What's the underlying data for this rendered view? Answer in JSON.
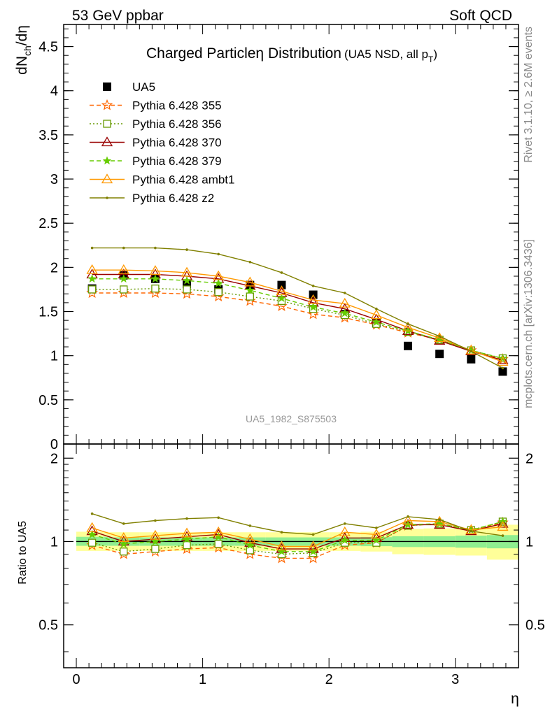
{
  "header": {
    "left": "53 GeV ppbar",
    "right": "Soft QCD"
  },
  "side_text": {
    "rivet": "Rivet 3.1.10, ≥ 2.6M events",
    "mcplots": "mcplots.cern.ch [arXiv:1306.3436]"
  },
  "chart_data": [
    {
      "type": "line",
      "panel": "main",
      "title": "Charged Particleη Distribution",
      "subtitle": "(UA5 NSD, all p",
      "subtitle_sub": "T",
      "subtitle_close": ")",
      "ylabel": "dN",
      "ylabel_sub": "ch",
      "ylabel_tail": "/dη",
      "watermark": "UA5_1982_S875503",
      "xlim": [
        -0.1,
        3.5
      ],
      "ylim": [
        0,
        4.75
      ],
      "yticks": [
        0,
        0.5,
        1,
        1.5,
        2,
        2.5,
        3,
        3.5,
        4,
        4.5
      ],
      "ytick_labels": [
        "0",
        "0.5",
        "1",
        "1.5",
        "2",
        "2.5",
        "3",
        "3.5",
        "4",
        "4.5"
      ],
      "x": [
        0.125,
        0.375,
        0.625,
        0.875,
        1.125,
        1.375,
        1.625,
        1.875,
        2.125,
        2.375,
        2.625,
        2.875,
        3.125,
        3.375
      ],
      "series": [
        {
          "name": "UA5",
          "color": "#000000",
          "marker": "square",
          "line": "none",
          "values": [
            1.76,
            1.91,
            1.87,
            1.81,
            1.75,
            1.8,
            1.8,
            1.69,
            1.47,
            1.37,
            1.11,
            1.02,
            0.96,
            0.82
          ]
        },
        {
          "name": "Pythia 6.428 355",
          "color": "#ff6600",
          "marker": "star-open",
          "line": "dashed",
          "values": [
            1.71,
            1.71,
            1.71,
            1.7,
            1.67,
            1.62,
            1.56,
            1.47,
            1.43,
            1.35,
            1.26,
            1.18,
            1.06,
            0.96
          ]
        },
        {
          "name": "Pythia 6.428 356",
          "color": "#669900",
          "marker": "square-open",
          "line": "dotted",
          "values": [
            1.75,
            1.75,
            1.76,
            1.75,
            1.72,
            1.67,
            1.62,
            1.53,
            1.46,
            1.36,
            1.27,
            1.18,
            1.06,
            0.97
          ]
        },
        {
          "name": "Pythia 6.428 370",
          "color": "#990000",
          "marker": "triangle-open",
          "line": "solid",
          "values": [
            1.92,
            1.92,
            1.92,
            1.9,
            1.87,
            1.79,
            1.71,
            1.6,
            1.53,
            1.41,
            1.28,
            1.17,
            1.05,
            0.95
          ]
        },
        {
          "name": "Pythia 6.428 379",
          "color": "#66cc00",
          "marker": "star",
          "line": "dashed",
          "values": [
            1.87,
            1.87,
            1.87,
            1.85,
            1.82,
            1.74,
            1.65,
            1.55,
            1.48,
            1.38,
            1.28,
            1.18,
            1.06,
            0.97
          ]
        },
        {
          "name": "Pythia 6.428 ambt1",
          "color": "#ff9900",
          "marker": "triangle-open",
          "line": "solid",
          "values": [
            1.97,
            1.97,
            1.96,
            1.94,
            1.9,
            1.83,
            1.73,
            1.63,
            1.59,
            1.46,
            1.32,
            1.2,
            1.06,
            0.93
          ]
        },
        {
          "name": "Pythia 6.428 z2",
          "color": "#808000",
          "marker": "dot",
          "line": "solid",
          "values": [
            2.22,
            2.22,
            2.22,
            2.2,
            2.15,
            2.06,
            1.94,
            1.79,
            1.71,
            1.53,
            1.36,
            1.22,
            1.05,
            0.86
          ]
        }
      ]
    },
    {
      "type": "line",
      "panel": "ratio",
      "ylabel": "Ratio to UA5",
      "xlabel": "η",
      "xlim": [
        -0.1,
        3.5
      ],
      "xticks": [
        0,
        1,
        2,
        3
      ],
      "xtick_labels": [
        "0",
        "1",
        "2",
        "3"
      ],
      "ylim": [
        0.35,
        2.25
      ],
      "yticks": [
        0.5,
        1,
        2
      ],
      "ytick_labels": [
        "0.5",
        "1",
        "2"
      ],
      "band_edges": [
        0,
        0.25,
        0.5,
        0.75,
        1.0,
        1.25,
        1.5,
        1.75,
        2.0,
        2.25,
        2.5,
        2.75,
        3.0,
        3.25,
        3.5
      ],
      "band_inner": [
        [
          0.965,
          1.04
        ],
        [
          0.965,
          1.035
        ],
        [
          0.965,
          1.035
        ],
        [
          0.965,
          1.035
        ],
        [
          0.965,
          1.035
        ],
        [
          0.965,
          1.035
        ],
        [
          0.965,
          1.035
        ],
        [
          0.965,
          1.035
        ],
        [
          0.965,
          1.035
        ],
        [
          0.962,
          1.037
        ],
        [
          0.955,
          1.045
        ],
        [
          0.955,
          1.045
        ],
        [
          0.95,
          1.05
        ],
        [
          0.945,
          1.055
        ]
      ],
      "band_outer": [
        [
          0.925,
          1.085
        ],
        [
          0.925,
          1.08
        ],
        [
          0.925,
          1.08
        ],
        [
          0.925,
          1.08
        ],
        [
          0.925,
          1.08
        ],
        [
          0.925,
          1.08
        ],
        [
          0.925,
          1.08
        ],
        [
          0.925,
          1.08
        ],
        [
          0.925,
          1.08
        ],
        [
          0.92,
          1.085
        ],
        [
          0.9,
          1.11
        ],
        [
          0.895,
          1.115
        ],
        [
          0.89,
          1.12
        ],
        [
          0.86,
          1.15
        ]
      ],
      "band_colors": {
        "inner": "#90ee90",
        "outer": "#ffff99"
      },
      "x": [
        0.125,
        0.375,
        0.625,
        0.875,
        1.125,
        1.375,
        1.625,
        1.875,
        2.125,
        2.375,
        2.625,
        2.875,
        3.125,
        3.375
      ],
      "series": [
        {
          "name": "Pythia 6.428 355",
          "color": "#ff6600",
          "marker": "star-open",
          "line": "dashed",
          "values": [
            0.97,
            0.9,
            0.92,
            0.94,
            0.95,
            0.9,
            0.87,
            0.87,
            0.97,
            0.99,
            1.14,
            1.16,
            1.1,
            1.17
          ]
        },
        {
          "name": "Pythia 6.428 356",
          "color": "#669900",
          "marker": "square-open",
          "line": "dotted",
          "values": [
            0.99,
            0.92,
            0.94,
            0.97,
            0.98,
            0.93,
            0.9,
            0.91,
            0.99,
            0.99,
            1.14,
            1.16,
            1.1,
            1.18
          ]
        },
        {
          "name": "Pythia 6.428 370",
          "color": "#990000",
          "marker": "triangle-open",
          "line": "solid",
          "values": [
            1.09,
            1.0,
            1.02,
            1.04,
            1.06,
            0.99,
            0.94,
            0.94,
            1.03,
            1.03,
            1.15,
            1.15,
            1.09,
            1.16
          ]
        },
        {
          "name": "Pythia 6.428 379",
          "color": "#66cc00",
          "marker": "star",
          "line": "dashed",
          "values": [
            1.06,
            0.98,
            1.0,
            1.02,
            1.04,
            0.97,
            0.92,
            0.92,
            1.01,
            1.01,
            1.15,
            1.16,
            1.1,
            1.18
          ]
        },
        {
          "name": "Pythia 6.428 ambt1",
          "color": "#ff9900",
          "marker": "triangle-open",
          "line": "solid",
          "values": [
            1.12,
            1.03,
            1.05,
            1.07,
            1.08,
            1.02,
            0.96,
            0.96,
            1.08,
            1.06,
            1.19,
            1.18,
            1.1,
            1.13
          ]
        },
        {
          "name": "Pythia 6.428 z2",
          "color": "#808000",
          "marker": "dot",
          "line": "solid",
          "values": [
            1.26,
            1.16,
            1.19,
            1.21,
            1.22,
            1.14,
            1.08,
            1.06,
            1.16,
            1.12,
            1.23,
            1.2,
            1.09,
            1.05
          ]
        }
      ]
    }
  ]
}
